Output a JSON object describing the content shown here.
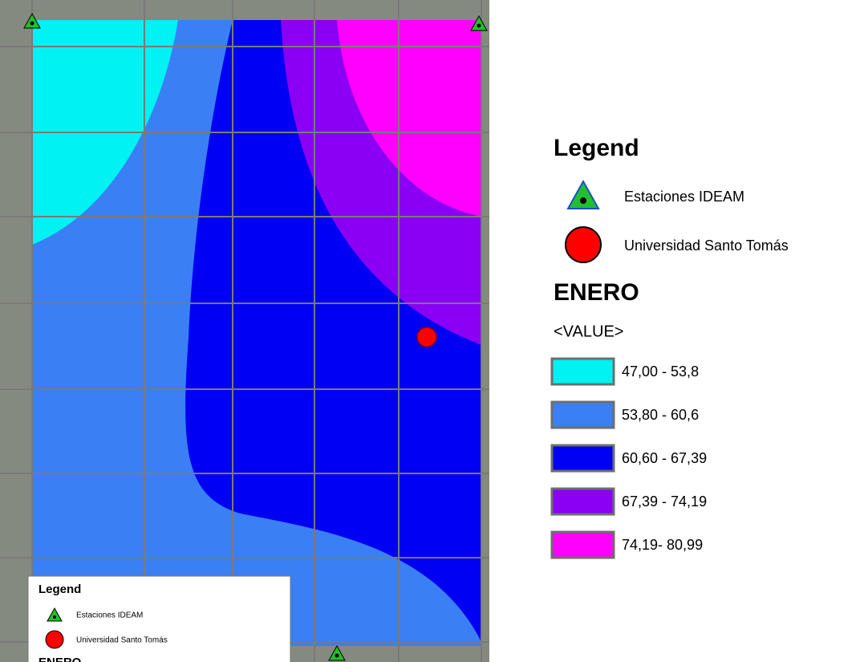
{
  "legend": {
    "title": "Legend",
    "items": [
      {
        "label": "Estaciones IDEAM"
      },
      {
        "label": "Universidad Santo Tomás"
      }
    ],
    "layer": "ENERO",
    "field": "<VALUE>",
    "classes": [
      {
        "label": "47,00 - 53,8",
        "color": "#00f2f2"
      },
      {
        "label": "53,80 - 60,6",
        "color": "#3a80f4"
      },
      {
        "label": "60,60 - 67,39",
        "color": "#0000f2"
      },
      {
        "label": "67,39 - 74,19",
        "color": "#8a00f4"
      },
      {
        "label": "74,19- 80,99",
        "color": "#ff00ff"
      }
    ]
  },
  "inset_legend": {
    "title": "Legend",
    "items": [
      {
        "label": "Estaciones IDEAM"
      },
      {
        "label": "Universidad Santo Tomás"
      }
    ],
    "layer": "ENERO"
  }
}
